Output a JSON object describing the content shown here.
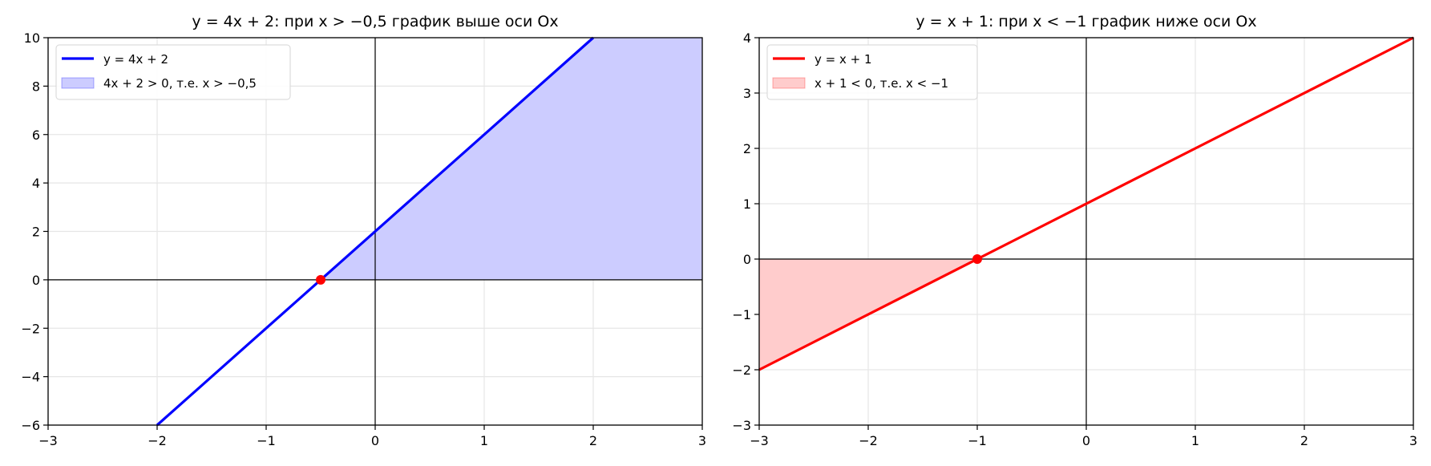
{
  "chart_data": [
    {
      "type": "line",
      "title": "y = 4x + 2: при x > −0,5 график выше оси Ox",
      "xlim": [
        -3,
        3
      ],
      "ylim": [
        -6,
        10
      ],
      "xticks": [
        -3,
        -2,
        -1,
        0,
        1,
        2,
        3
      ],
      "yticks": [
        -6,
        -4,
        -2,
        0,
        2,
        4,
        6,
        8,
        10
      ],
      "grid": true,
      "legend_position": "top-left",
      "series": [
        {
          "name": "y = 4x + 2",
          "kind": "line",
          "slope": 4,
          "intercept": 2,
          "x": [
            -3,
            3
          ],
          "color": "#0000ff"
        },
        {
          "name": "4x + 2 > 0, т.е. x > −0,5",
          "kind": "fill_between_above_zero",
          "x_range": [
            -0.5,
            3
          ],
          "color": "#ccccff"
        }
      ],
      "highlight_point": {
        "x": -0.5,
        "y": 0,
        "color": "#ff0000"
      }
    },
    {
      "type": "line",
      "title": "y = x + 1: при x < −1 график ниже оси Ox",
      "xlim": [
        -3,
        3
      ],
      "ylim": [
        -3,
        4
      ],
      "xticks": [
        -3,
        -2,
        -1,
        0,
        1,
        2,
        3
      ],
      "yticks": [
        -3,
        -2,
        -1,
        0,
        1,
        2,
        3,
        4
      ],
      "grid": true,
      "legend_position": "top-left",
      "series": [
        {
          "name": "y = x + 1",
          "kind": "line",
          "slope": 1,
          "intercept": 1,
          "x": [
            -3,
            3
          ],
          "color": "#ff0000"
        },
        {
          "name": "x + 1 < 0, т.е. x < −1",
          "kind": "fill_between_below_zero",
          "x_range": [
            -3,
            -1
          ],
          "color": "#ffcccc"
        }
      ],
      "highlight_point": {
        "x": -1,
        "y": 0,
        "color": "#ff0000"
      }
    }
  ]
}
